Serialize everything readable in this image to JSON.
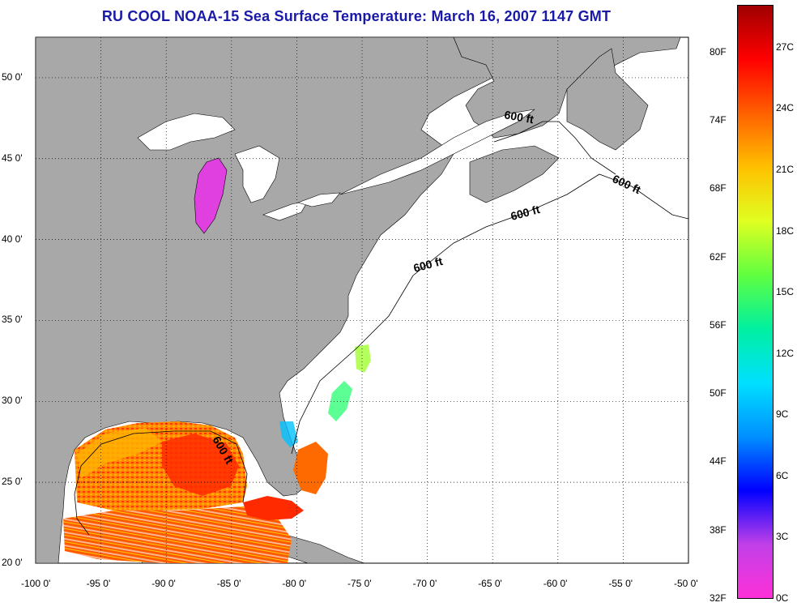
{
  "title": "RU COOL  NOAA-15  Sea Surface Temperature:  March 16, 2007 1147 GMT",
  "map": {
    "lon_range": [
      -100,
      -50
    ],
    "lat_range": [
      20,
      52.5
    ],
    "lon_ticks": [
      "-100 0'",
      "-95 0'",
      "-90 0'",
      "-85 0'",
      "-80 0'",
      "-75 0'",
      "-70 0'",
      "-65 0'",
      "-60 0'",
      "-55 0'",
      "-50 0'"
    ],
    "lat_ticks": [
      "20 0'",
      "25 0'",
      "30 0'",
      "35 0'",
      "40 0'",
      "45 0'",
      "50 0'"
    ],
    "grid": "dotted",
    "land_color": "#a8a8a8",
    "water_color": "#ffffff",
    "isobath_label": "600 ft"
  },
  "colorbar": {
    "fahrenheit": [
      "32F",
      "38F",
      "44F",
      "50F",
      "56F",
      "62F",
      "68F",
      "74F",
      "80F"
    ],
    "celsius": [
      "0C",
      "3C",
      "6C",
      "9C",
      "12C",
      "15C",
      "18C",
      "21C",
      "24C",
      "27C"
    ],
    "colors": [
      "#ff30d8",
      "#c040e8",
      "#0000ff",
      "#0090ff",
      "#00e0ff",
      "#00f0a0",
      "#60ff40",
      "#e0ff20",
      "#ffc000",
      "#ff6000",
      "#ff0000",
      "#a00000"
    ]
  }
}
